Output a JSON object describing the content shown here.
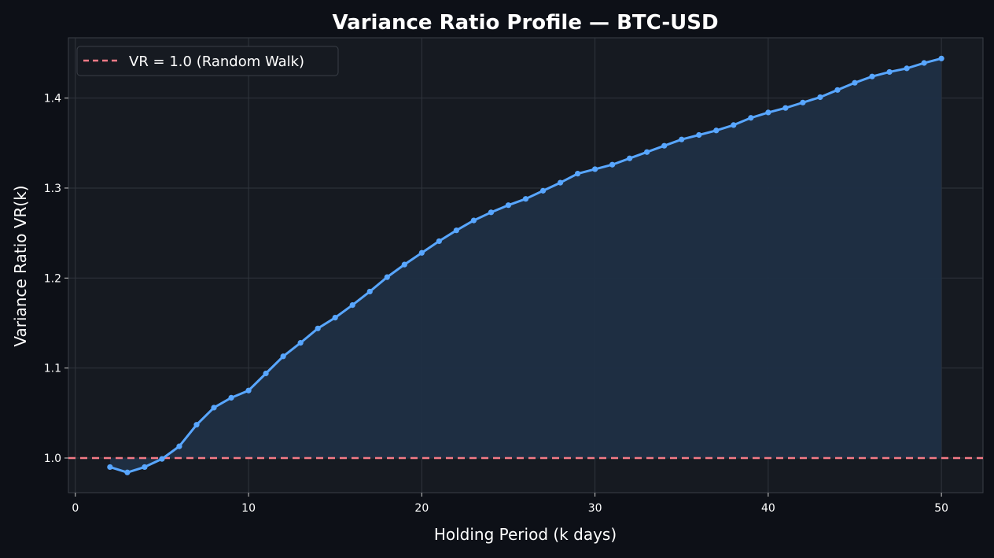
{
  "chart_data": {
    "type": "line",
    "title": "Variance Ratio Profile — BTC-USD",
    "xlabel": "Holding Period (k days)",
    "ylabel": "Variance Ratio VR(k)",
    "xlim": [
      -0.4,
      52.4
    ],
    "ylim": [
      0.9615,
      1.467
    ],
    "xticks": [
      0,
      10,
      20,
      30,
      40,
      50
    ],
    "yticks": [
      1.0,
      1.1,
      1.2,
      1.3,
      1.4
    ],
    "ytick_labels": [
      "1.0",
      "1.1",
      "1.2",
      "1.3",
      "1.4"
    ],
    "grid": true,
    "legend_placement": "top-left",
    "series": [
      {
        "color": "#58a6ff",
        "fill_to": 1.0,
        "fill_color": "#1f2f44",
        "markers": true,
        "x": [
          2,
          3,
          4,
          5,
          6,
          7,
          8,
          9,
          10,
          11,
          12,
          13,
          14,
          15,
          16,
          17,
          18,
          19,
          20,
          21,
          22,
          23,
          24,
          25,
          26,
          27,
          28,
          29,
          30,
          31,
          32,
          33,
          34,
          35,
          36,
          37,
          38,
          39,
          40,
          41,
          42,
          43,
          44,
          45,
          46,
          47,
          48,
          49,
          50
        ],
        "y": [
          0.99,
          0.984,
          0.99,
          0.999,
          1.013,
          1.037,
          1.056,
          1.067,
          1.075,
          1.094,
          1.113,
          1.128,
          1.144,
          1.156,
          1.17,
          1.185,
          1.201,
          1.215,
          1.228,
          1.241,
          1.253,
          1.264,
          1.273,
          1.281,
          1.288,
          1.297,
          1.306,
          1.316,
          1.321,
          1.326,
          1.333,
          1.34,
          1.347,
          1.354,
          1.359,
          1.364,
          1.37,
          1.378,
          1.384,
          1.389,
          1.395,
          1.401,
          1.409,
          1.417,
          1.424,
          1.429,
          1.433,
          1.439,
          1.444
        ]
      }
    ],
    "reference_line": {
      "name": "VR = 1.0 (Random Walk)",
      "y": 1.0,
      "color": "#f47a86",
      "style": "dashed"
    },
    "colors": {
      "background": "#0d1017",
      "plot_background": "#161a21",
      "grid": "#30353d",
      "text": "#ffffff"
    }
  }
}
